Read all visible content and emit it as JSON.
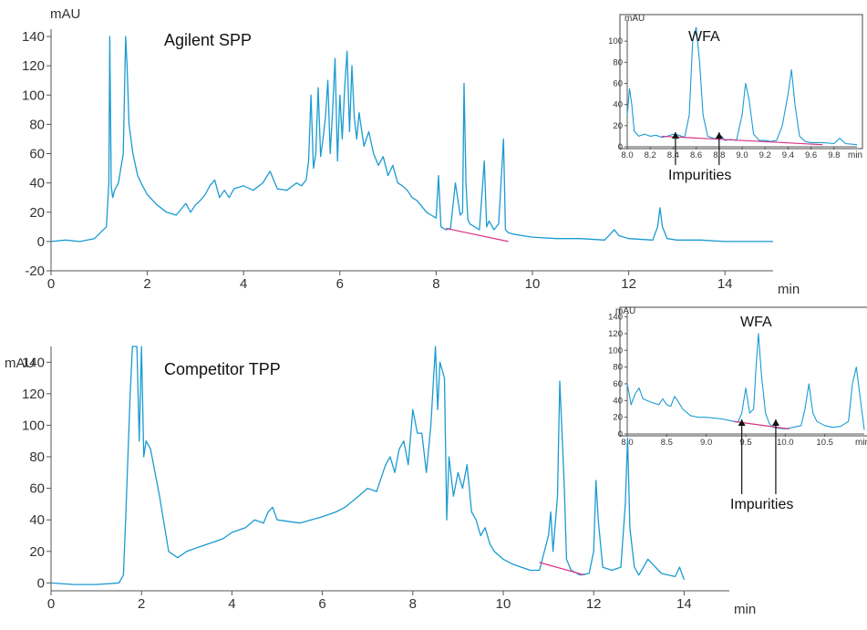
{
  "colors": {
    "trace": "#1b9bd1",
    "baseline": "#d63384",
    "axis": "#555555",
    "text": "#333333"
  },
  "chart_data": [
    {
      "type": "line",
      "panel": "top-main",
      "annotation": "Agilent SPP",
      "xlabel": "min",
      "ylabel": "mAU",
      "xlim": [
        0,
        15
      ],
      "ylim": [
        -20,
        145
      ],
      "xticks": [
        0,
        2,
        4,
        6,
        8,
        10,
        12,
        14
      ],
      "yticks": [
        -20,
        0,
        20,
        40,
        60,
        80,
        100,
        120,
        140
      ],
      "baseline_segment": {
        "x": [
          8.2,
          9.5
        ],
        "y": [
          9,
          0
        ]
      },
      "series": [
        {
          "x": [
            0,
            0.3,
            0.6,
            0.9,
            1.15,
            1.2,
            1.22,
            1.25,
            1.28,
            1.32,
            1.4,
            1.5,
            1.55,
            1.58,
            1.62,
            1.7,
            1.8,
            1.9,
            2,
            2.2,
            2.4,
            2.6,
            2.7,
            2.8,
            2.9,
            3,
            3.1,
            3.2,
            3.3,
            3.4,
            3.5,
            3.6,
            3.7,
            3.8,
            4,
            4.2,
            4.4,
            4.55,
            4.7,
            4.9,
            5.1,
            5.2,
            5.3,
            5.35,
            5.4,
            5.45,
            5.5,
            5.55,
            5.6,
            5.65,
            5.7,
            5.75,
            5.8,
            5.85,
            5.9,
            5.95,
            6,
            6.05,
            6.1,
            6.15,
            6.2,
            6.25,
            6.3,
            6.35,
            6.4,
            6.5,
            6.6,
            6.7,
            6.8,
            6.9,
            7,
            7.1,
            7.2,
            7.3,
            7.4,
            7.5,
            7.6,
            7.7,
            7.8,
            7.9,
            8,
            8.05,
            8.1,
            8.2,
            8.3,
            8.4,
            8.5,
            8.55,
            8.58,
            8.62,
            8.66,
            8.7,
            8.8,
            8.9,
            9,
            9.05,
            9.1,
            9.2,
            9.3,
            9.4,
            9.44,
            9.5,
            9.6,
            9.8,
            10,
            10.5,
            11,
            11.5,
            11.7,
            11.8,
            12,
            12.5,
            12.6,
            12.65,
            12.7,
            12.8,
            13,
            13.5,
            14,
            14.5,
            15
          ],
          "y": [
            0,
            1,
            0,
            2,
            10,
            40,
            140,
            38,
            30,
            35,
            40,
            60,
            140,
            120,
            80,
            60,
            45,
            38,
            32,
            25,
            20,
            18,
            22,
            26,
            20,
            25,
            28,
            32,
            38,
            42,
            30,
            35,
            30,
            36,
            38,
            35,
            40,
            48,
            36,
            35,
            40,
            38,
            42,
            55,
            100,
            50,
            60,
            105,
            58,
            70,
            85,
            110,
            60,
            90,
            125,
            55,
            100,
            70,
            105,
            130,
            75,
            120,
            85,
            70,
            88,
            65,
            75,
            60,
            52,
            58,
            45,
            52,
            40,
            38,
            35,
            30,
            28,
            24,
            20,
            18,
            16,
            45,
            10,
            8,
            9,
            40,
            18,
            20,
            108,
            40,
            15,
            12,
            10,
            8,
            55,
            10,
            14,
            8,
            12,
            70,
            8,
            6,
            5,
            4,
            3,
            2,
            2,
            1,
            8,
            4,
            2,
            1,
            10,
            23,
            10,
            2,
            1,
            1,
            0,
            0,
            0
          ]
        }
      ]
    },
    {
      "type": "line",
      "panel": "top-inset",
      "annotation": "WFA",
      "annotation2": "Impurities",
      "xlabel": "min",
      "ylabel": "mAU",
      "xlim": [
        8.0,
        10.0
      ],
      "ylim": [
        0,
        120
      ],
      "xticks": [
        8.0,
        8.2,
        8.4,
        8.6,
        8.8,
        9.0,
        9.2,
        9.4,
        9.6,
        9.8
      ],
      "yticks": [
        0,
        20,
        40,
        60,
        80,
        100
      ],
      "arrows_at": [
        8.42,
        8.8
      ],
      "baseline_segment": {
        "x": [
          8.3,
          9.7
        ],
        "y": [
          10,
          2
        ]
      },
      "series": [
        {
          "x": [
            8.0,
            8.02,
            8.04,
            8.06,
            8.1,
            8.15,
            8.2,
            8.25,
            8.3,
            8.35,
            8.4,
            8.45,
            8.5,
            8.54,
            8.57,
            8.6,
            8.63,
            8.66,
            8.7,
            8.75,
            8.8,
            8.82,
            8.85,
            8.9,
            8.95,
            9.0,
            9.03,
            9.06,
            9.1,
            9.15,
            9.2,
            9.25,
            9.3,
            9.35,
            9.4,
            9.43,
            9.46,
            9.5,
            9.55,
            9.6,
            9.7,
            9.8,
            9.85,
            9.9,
            10.0
          ],
          "y": [
            30,
            55,
            40,
            15,
            10,
            12,
            10,
            11,
            9,
            10,
            12,
            11,
            9,
            30,
            100,
            113,
            80,
            30,
            10,
            8,
            7,
            10,
            6,
            7,
            6,
            30,
            60,
            45,
            12,
            6,
            6,
            5,
            6,
            20,
            50,
            73,
            40,
            10,
            5,
            4,
            4,
            3,
            8,
            3,
            2
          ]
        }
      ]
    },
    {
      "type": "line",
      "panel": "bottom-main",
      "annotation": "Competitor TPP",
      "xlabel": "min",
      "ylabel": "mAU",
      "xlim": [
        0,
        15
      ],
      "ylim": [
        -5,
        150
      ],
      "xticks": [
        0,
        2,
        4,
        6,
        8,
        10,
        12,
        14
      ],
      "yticks": [
        0,
        20,
        40,
        60,
        80,
        100,
        120,
        140
      ],
      "baseline_segment": {
        "x": [
          10.8,
          11.8
        ],
        "y": [
          13,
          5
        ]
      },
      "series": [
        {
          "x": [
            0,
            0.5,
            1,
            1.5,
            1.6,
            1.65,
            1.7,
            1.75,
            1.8,
            1.9,
            1.95,
            2.0,
            2.05,
            2.1,
            2.2,
            2.4,
            2.6,
            2.8,
            3,
            3.2,
            3.5,
            3.8,
            4,
            4.3,
            4.5,
            4.7,
            4.8,
            4.9,
            5,
            5.5,
            6,
            6.3,
            6.5,
            6.8,
            7,
            7.2,
            7.4,
            7.5,
            7.6,
            7.7,
            7.8,
            7.9,
            8,
            8.1,
            8.2,
            8.3,
            8.4,
            8.5,
            8.55,
            8.6,
            8.7,
            8.75,
            8.8,
            8.9,
            9,
            9.1,
            9.2,
            9.3,
            9.4,
            9.5,
            9.6,
            9.7,
            9.8,
            10,
            10.2,
            10.4,
            10.6,
            10.8,
            11,
            11.05,
            11.1,
            11.2,
            11.25,
            11.3,
            11.35,
            11.4,
            11.5,
            11.7,
            11.9,
            12,
            12.05,
            12.1,
            12.2,
            12.4,
            12.6,
            12.7,
            12.75,
            12.8,
            12.9,
            13,
            13.2,
            13.5,
            13.8,
            13.9,
            14
          ],
          "y": [
            0,
            -1,
            -1,
            0,
            5,
            40,
            80,
            120,
            150,
            150,
            90,
            150,
            80,
            90,
            85,
            55,
            20,
            16,
            20,
            22,
            25,
            28,
            32,
            35,
            40,
            38,
            45,
            48,
            40,
            38,
            42,
            45,
            48,
            55,
            60,
            58,
            75,
            80,
            70,
            85,
            90,
            75,
            110,
            95,
            95,
            70,
            100,
            150,
            110,
            140,
            130,
            40,
            80,
            55,
            70,
            60,
            75,
            45,
            40,
            30,
            35,
            25,
            20,
            15,
            12,
            10,
            8,
            8,
            30,
            45,
            20,
            55,
            128,
            95,
            60,
            15,
            8,
            5,
            6,
            20,
            65,
            40,
            10,
            8,
            10,
            50,
            92,
            35,
            10,
            5,
            15,
            6,
            4,
            10,
            2
          ]
        }
      ]
    },
    {
      "type": "line",
      "panel": "bottom-inset",
      "annotation": "WFA",
      "annotation2": "Impurities",
      "xlabel": "min",
      "ylabel": "mAU",
      "xlim": [
        8.0,
        11.0
      ],
      "ylim": [
        0,
        145
      ],
      "xticks": [
        8.0,
        8.5,
        9.0,
        9.5,
        10.0,
        10.5
      ],
      "yticks": [
        0,
        20,
        40,
        60,
        80,
        100,
        120,
        140
      ],
      "arrows_at": [
        9.45,
        9.88
      ],
      "baseline_segment": {
        "x": [
          9.35,
          10.05
        ],
        "y": [
          15,
          6
        ]
      },
      "series": [
        {
          "x": [
            8.0,
            8.05,
            8.1,
            8.15,
            8.2,
            8.25,
            8.3,
            8.4,
            8.45,
            8.5,
            8.55,
            8.6,
            8.65,
            8.7,
            8.8,
            8.9,
            9.0,
            9.1,
            9.2,
            9.3,
            9.4,
            9.45,
            9.5,
            9.55,
            9.6,
            9.63,
            9.66,
            9.7,
            9.75,
            9.8,
            9.85,
            9.9,
            10.0,
            10.1,
            10.2,
            10.25,
            10.3,
            10.35,
            10.4,
            10.5,
            10.6,
            10.7,
            10.8,
            10.85,
            10.9,
            11.0
          ],
          "y": [
            60,
            35,
            48,
            55,
            42,
            40,
            38,
            35,
            42,
            35,
            33,
            45,
            38,
            30,
            22,
            20,
            20,
            19,
            18,
            16,
            14,
            25,
            55,
            25,
            30,
            80,
            120,
            70,
            25,
            12,
            8,
            7,
            6,
            8,
            10,
            30,
            60,
            25,
            15,
            10,
            8,
            9,
            15,
            60,
            80,
            5
          ]
        }
      ]
    }
  ]
}
